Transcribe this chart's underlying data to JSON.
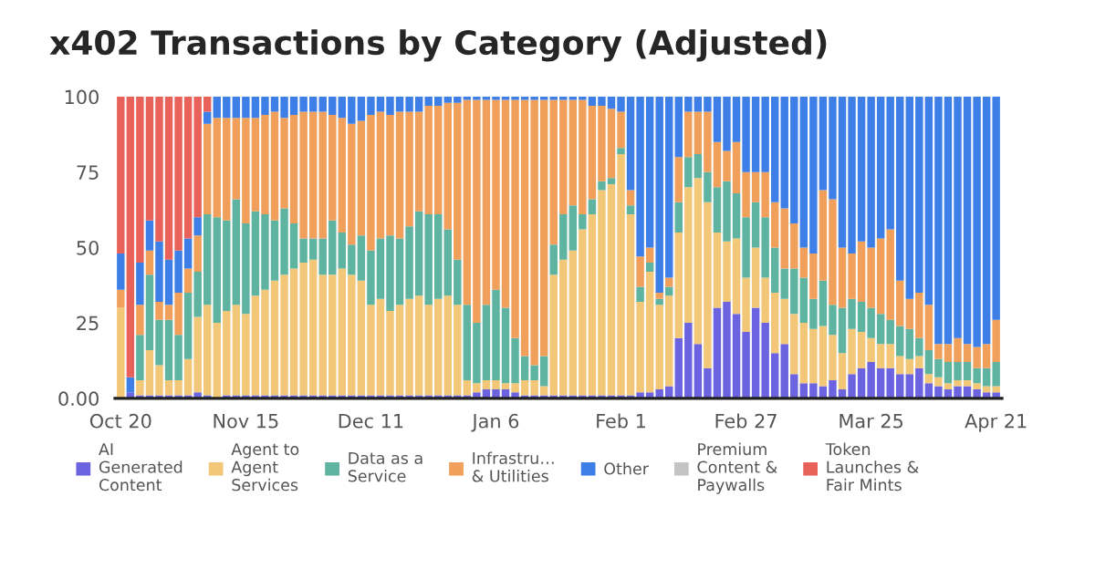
{
  "chart_data": {
    "type": "bar",
    "stacked": true,
    "title": "x402 Transactions by Category (Adjusted)",
    "categories": [
      "Oct 20",
      null,
      null,
      null,
      null,
      null,
      null,
      null,
      null,
      null,
      null,
      null,
      null,
      "Nov 15",
      null,
      null,
      null,
      null,
      null,
      null,
      null,
      null,
      null,
      null,
      null,
      null,
      "Dec 11",
      null,
      null,
      null,
      null,
      null,
      null,
      null,
      null,
      null,
      null,
      null,
      null,
      "Jan 6",
      null,
      null,
      null,
      null,
      null,
      null,
      null,
      null,
      null,
      null,
      null,
      null,
      "Feb 1",
      null,
      null,
      null,
      null,
      null,
      null,
      null,
      null,
      null,
      null,
      null,
      null,
      "Feb 27",
      null,
      null,
      null,
      null,
      null,
      null,
      null,
      null,
      null,
      null,
      null,
      null,
      "Mar 25",
      null,
      null,
      null,
      null,
      null,
      null,
      null,
      null,
      null,
      null,
      null,
      null,
      "Apr 21"
    ],
    "ylim": [
      0,
      100
    ],
    "yticks": [
      {
        "value": 0,
        "label": "0.00"
      },
      25,
      50,
      75,
      100
    ],
    "legend": "bottom",
    "series": [
      {
        "name": "AI\nGenerated\nContent",
        "color": "#6b63e0",
        "values": [
          0,
          2,
          1,
          1,
          1,
          1,
          1,
          1,
          2,
          1,
          0,
          1,
          1,
          1,
          1,
          1,
          1,
          1,
          1,
          1,
          1,
          1,
          1,
          1,
          1,
          1,
          1,
          1,
          1,
          1,
          1,
          1,
          1,
          1,
          1,
          1,
          1,
          2,
          3,
          3,
          3,
          2,
          1,
          1,
          1,
          1,
          1,
          1,
          1,
          1,
          1,
          1,
          1,
          1,
          2,
          2,
          3,
          4,
          20,
          25,
          18,
          10,
          30,
          32,
          28,
          22,
          30,
          25,
          15,
          18,
          8,
          5,
          5,
          4,
          6,
          3,
          8,
          10,
          12,
          10,
          10,
          8,
          8,
          10,
          5,
          4,
          3,
          4,
          4,
          3,
          2,
          2
        ]
      },
      {
        "name": "Agent to\nAgent\nServices",
        "color": "#f2c777",
        "values": [
          30,
          0,
          5,
          15,
          10,
          5,
          5,
          12,
          25,
          30,
          25,
          28,
          30,
          27,
          33,
          35,
          38,
          40,
          42,
          44,
          45,
          40,
          40,
          42,
          40,
          38,
          30,
          32,
          28,
          30,
          32,
          33,
          30,
          32,
          33,
          30,
          5,
          3,
          3,
          3,
          2,
          3,
          5,
          5,
          3,
          40,
          45,
          48,
          55,
          60,
          68,
          70,
          80,
          60,
          30,
          40,
          28,
          30,
          35,
          45,
          55,
          55,
          25,
          20,
          25,
          18,
          20,
          15,
          20,
          15,
          20,
          20,
          18,
          20,
          15,
          12,
          15,
          12,
          8,
          8,
          8,
          6,
          5,
          4,
          3,
          3,
          2,
          2,
          2,
          2,
          2,
          2
        ]
      },
      {
        "name": "Data as a\nService",
        "color": "#5fb3a1",
        "values": [
          0,
          0,
          15,
          25,
          15,
          20,
          15,
          22,
          15,
          30,
          35,
          30,
          35,
          30,
          28,
          25,
          20,
          22,
          15,
          8,
          7,
          12,
          18,
          12,
          10,
          15,
          18,
          20,
          25,
          22,
          24,
          28,
          30,
          28,
          22,
          15,
          25,
          20,
          25,
          30,
          25,
          15,
          8,
          5,
          10,
          10,
          15,
          15,
          5,
          5,
          3,
          2,
          2,
          3,
          5,
          3,
          2,
          3,
          10,
          10,
          8,
          10,
          15,
          20,
          15,
          20,
          15,
          20,
          15,
          10,
          15,
          15,
          10,
          15,
          10,
          15,
          10,
          10,
          10,
          10,
          8,
          10,
          10,
          6,
          8,
          6,
          7,
          6,
          6,
          5,
          6,
          8
        ]
      },
      {
        "name": "Infrastru…\n& Utilities",
        "color": "#f0a05a",
        "values": [
          6,
          0,
          10,
          8,
          6,
          5,
          14,
          8,
          12,
          30,
          33,
          34,
          27,
          35,
          31,
          33,
          36,
          30,
          36,
          42,
          42,
          42,
          35,
          38,
          40,
          38,
          45,
          42,
          40,
          42,
          38,
          33,
          36,
          36,
          42,
          52,
          68,
          74,
          68,
          63,
          69,
          79,
          85,
          88,
          85,
          48,
          38,
          35,
          38,
          31,
          25,
          23,
          12,
          5,
          10,
          5,
          2,
          3,
          15,
          15,
          14,
          20,
          15,
          10,
          17,
          15,
          10,
          15,
          15,
          20,
          15,
          10,
          15,
          30,
          35,
          20,
          15,
          20,
          20,
          25,
          30,
          15,
          10,
          15,
          15,
          5,
          6,
          8,
          6,
          7,
          8,
          14
        ]
      },
      {
        "name": "Other",
        "color": "#3d7fe6",
        "values": [
          12,
          5,
          14,
          10,
          20,
          15,
          14,
          10,
          6,
          4,
          7,
          7,
          7,
          7,
          7,
          6,
          5,
          7,
          6,
          5,
          5,
          5,
          6,
          7,
          9,
          8,
          6,
          5,
          6,
          5,
          5,
          5,
          3,
          3,
          2,
          2,
          1,
          1,
          1,
          1,
          1,
          1,
          1,
          1,
          1,
          1,
          1,
          1,
          1,
          3,
          3,
          4,
          5,
          31,
          53,
          50,
          65,
          60,
          20,
          5,
          5,
          5,
          15,
          18,
          15,
          25,
          25,
          25,
          35,
          37,
          42,
          50,
          52,
          31,
          34,
          50,
          52,
          48,
          50,
          47,
          44,
          61,
          67,
          65,
          69,
          82,
          82,
          80,
          82,
          83,
          82,
          74
        ]
      },
      {
        "name": "Premium\nContent &\nPaywalls",
        "color": "#c4c4c4",
        "values": [
          0,
          0,
          0,
          0,
          0,
          0,
          0,
          0,
          0,
          0,
          0,
          0,
          0,
          0,
          0,
          0,
          0,
          0,
          0,
          0,
          0,
          0,
          0,
          0,
          0,
          0,
          0,
          0,
          0,
          0,
          0,
          0,
          0,
          0,
          0,
          0,
          0,
          0,
          0,
          0,
          0,
          0,
          0,
          0,
          0,
          0,
          0,
          0,
          0,
          0,
          0,
          0,
          0,
          0,
          0,
          0,
          0,
          0,
          0,
          0,
          0,
          0,
          0,
          0,
          0,
          0,
          0,
          0,
          0,
          0,
          0,
          0,
          0,
          0,
          0,
          0,
          0,
          0,
          0,
          0,
          0,
          0,
          0,
          0,
          0,
          0,
          0,
          0,
          0,
          0,
          0,
          0
        ]
      },
      {
        "name": "Token\nLaunches &\nFair Mints",
        "color": "#e8625a",
        "values": [
          52,
          93,
          55,
          41,
          48,
          54,
          51,
          47,
          40,
          5,
          0,
          0,
          0,
          0,
          0,
          0,
          0,
          0,
          0,
          0,
          0,
          0,
          0,
          0,
          0,
          0,
          0,
          0,
          0,
          0,
          0,
          0,
          0,
          0,
          0,
          0,
          0,
          0,
          0,
          0,
          0,
          0,
          0,
          0,
          0,
          0,
          0,
          0,
          0,
          0,
          0,
          0,
          0,
          0,
          0,
          0,
          0,
          0,
          0,
          0,
          0,
          0,
          0,
          0,
          0,
          0,
          0,
          0,
          0,
          0,
          0,
          0,
          0,
          0,
          0,
          0,
          0,
          0,
          0,
          0,
          0,
          0,
          0,
          0,
          0,
          0,
          0,
          0,
          0,
          0,
          0,
          0
        ]
      }
    ]
  }
}
